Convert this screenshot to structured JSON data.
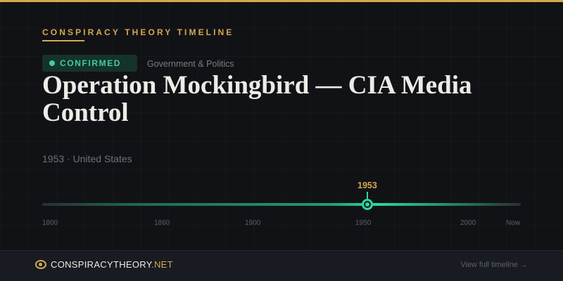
{
  "kicker": "CONSPIRACY THEORY TIMELINE",
  "badge": {
    "label": "CONFIRMED",
    "color": "#3ecf99"
  },
  "category": "Government & Politics",
  "title": "Operation Mockingbird — CIA Media Control",
  "meta": "1953 · United States",
  "timeline": {
    "event_year": "1953",
    "ticks": [
      "1800",
      "1860",
      "1900",
      "1950",
      "2000",
      "Now"
    ]
  },
  "footer": {
    "brand_main": "CONSPIRACYTHEORY",
    "brand_tld": ".NET",
    "link": "View full timeline →"
  },
  "colors": {
    "accent": "#d4a94e",
    "confirmed": "#3ecf99",
    "background": "#111216"
  },
  "icons": {
    "brand": "eye-icon"
  }
}
